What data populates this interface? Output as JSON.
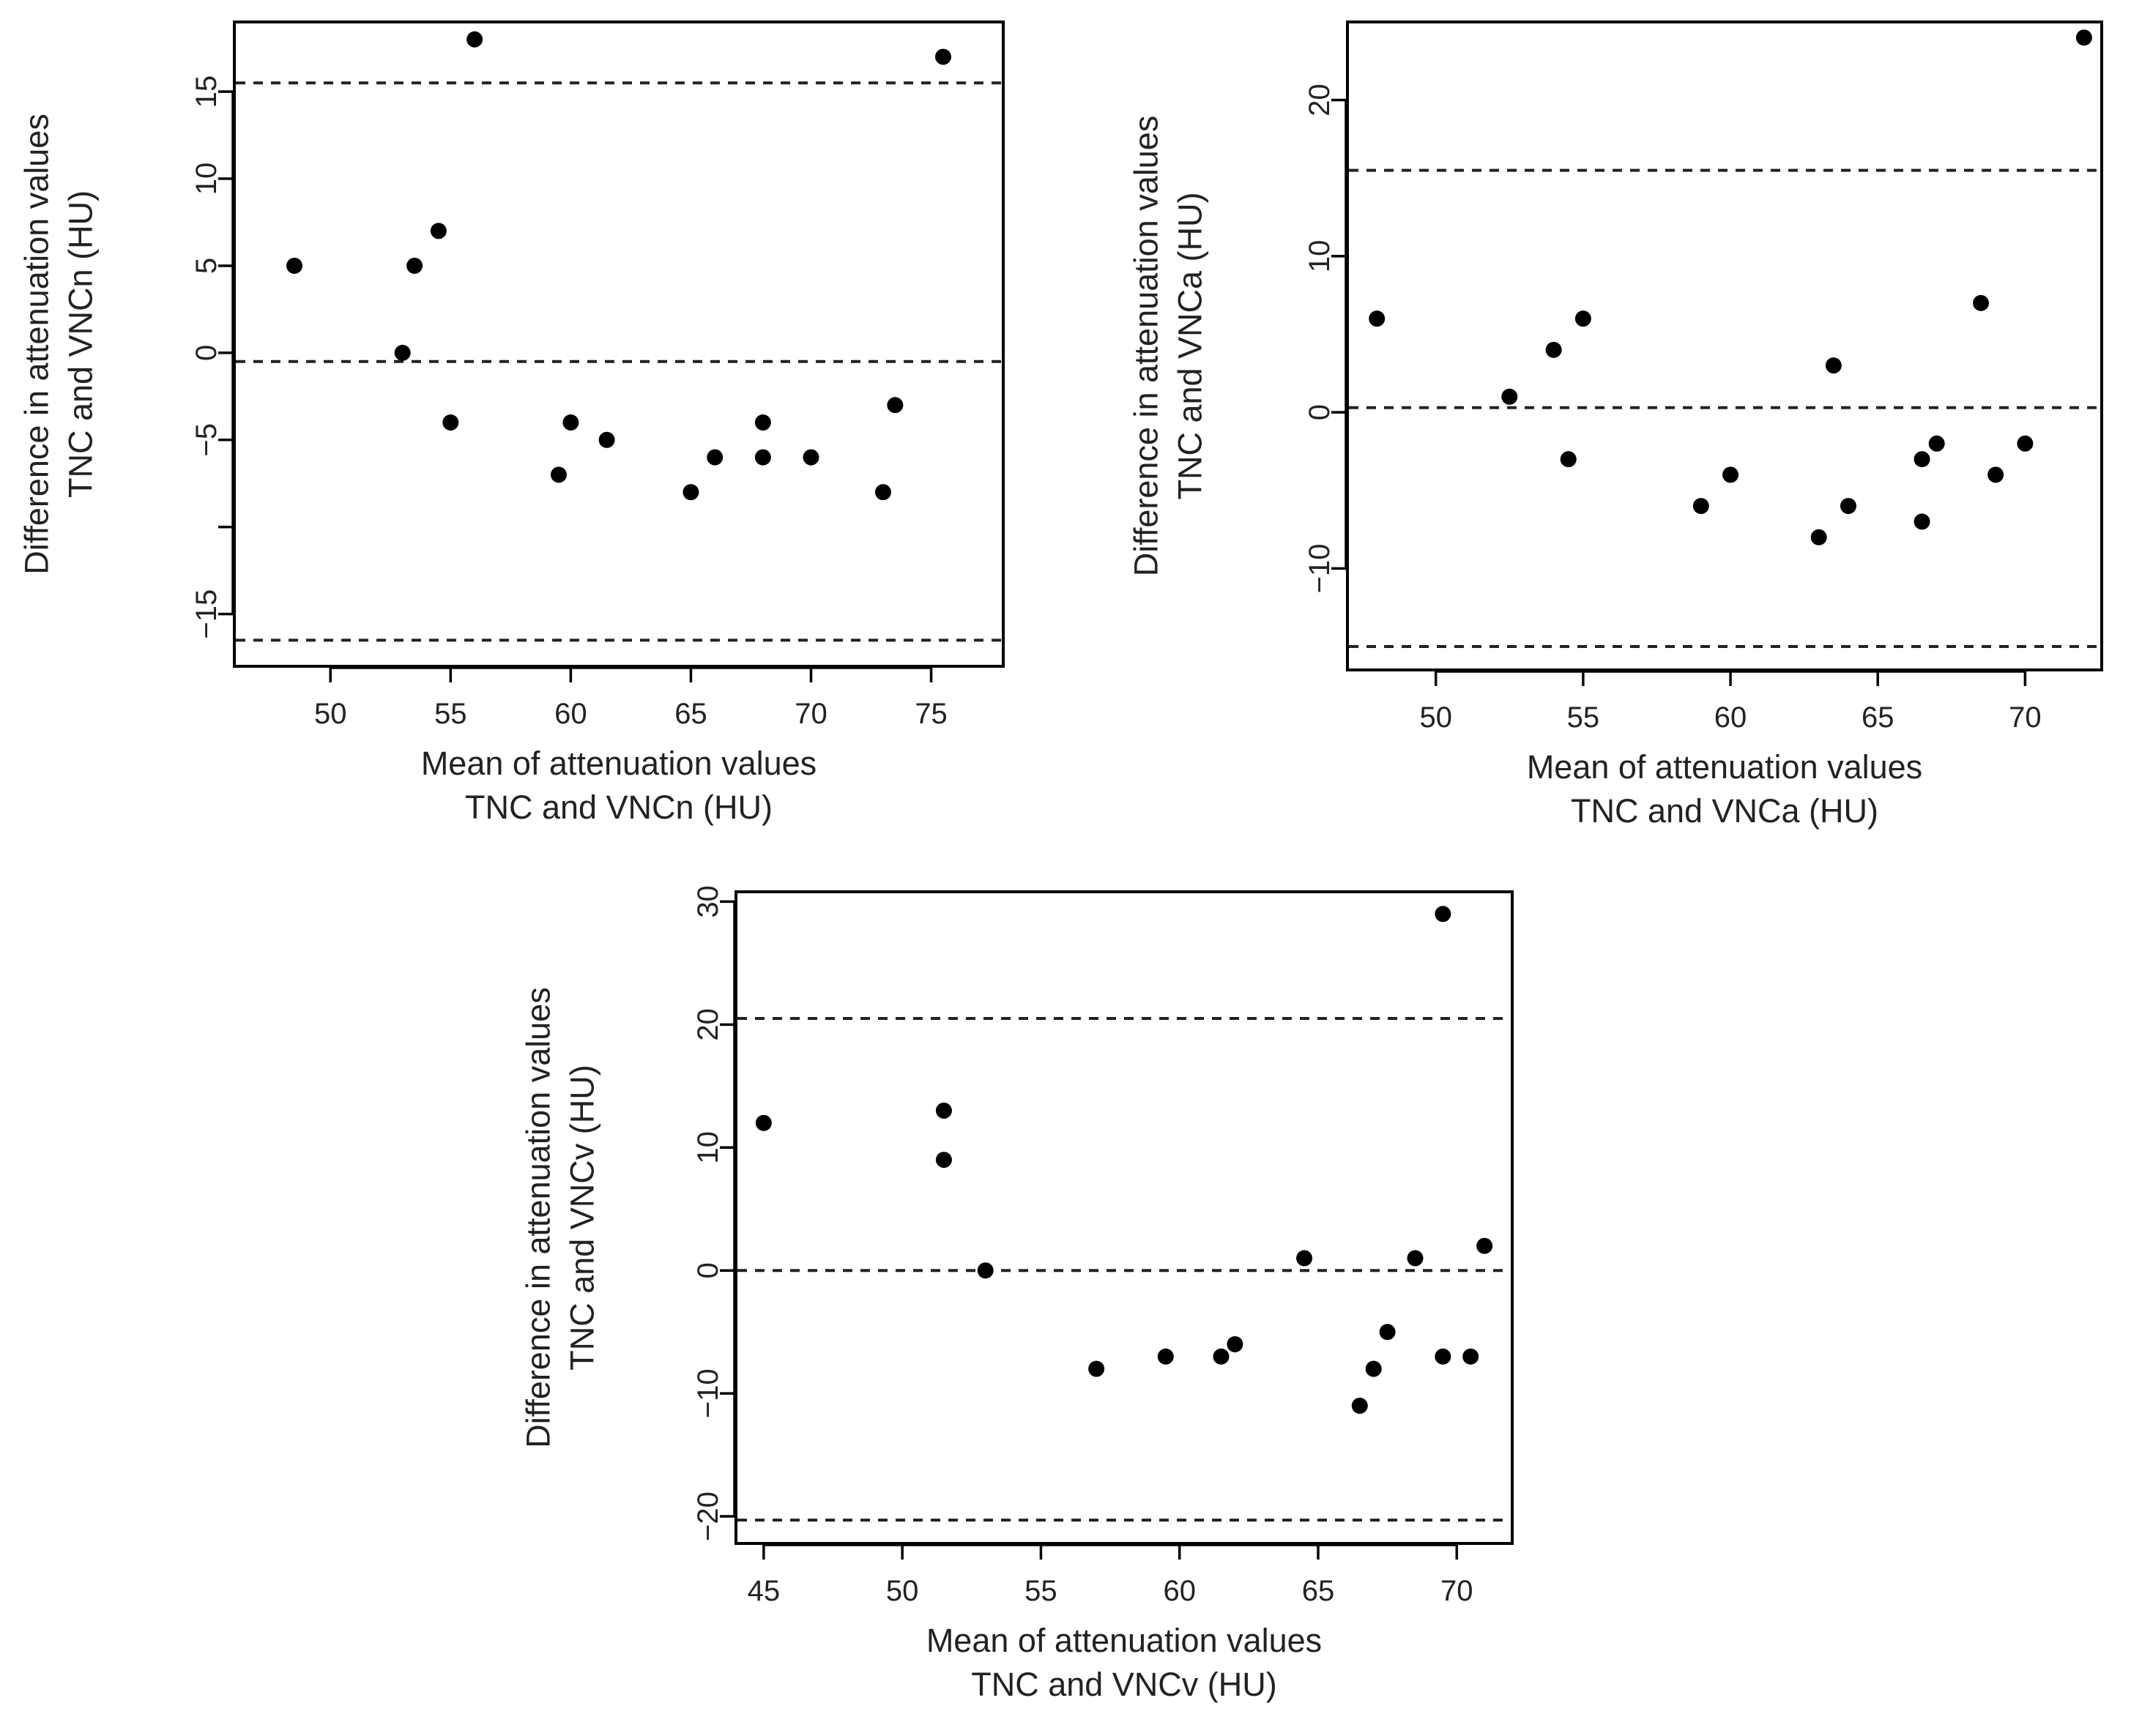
{
  "chart_data": [
    {
      "type": "scatter",
      "plot_kind": "bland-altman",
      "xlabel": [
        "Mean of attenuation values",
        "TNC and VNCn (HU)"
      ],
      "ylabel": [
        "Difference in attenuation values",
        "TNC and VNCn (HU)"
      ],
      "xlim": [
        46,
        78
      ],
      "ylim": [
        -18,
        19
      ],
      "xticks": [
        50,
        55,
        60,
        65,
        70,
        75
      ],
      "yticks": [
        -15,
        -10,
        -5,
        0,
        5,
        10,
        15
      ],
      "ytick_labels": [
        "−15",
        "",
        "−5",
        "0",
        "5",
        "10",
        "15"
      ],
      "hlines": [
        15.5,
        -0.5,
        -16.5
      ],
      "points": [
        {
          "x": 48.5,
          "y": 5
        },
        {
          "x": 53,
          "y": 0
        },
        {
          "x": 53.5,
          "y": 5
        },
        {
          "x": 54.5,
          "y": 7
        },
        {
          "x": 55,
          "y": -4
        },
        {
          "x": 56,
          "y": 18
        },
        {
          "x": 59.5,
          "y": -7
        },
        {
          "x": 60,
          "y": -4
        },
        {
          "x": 61.5,
          "y": -5
        },
        {
          "x": 65,
          "y": -8
        },
        {
          "x": 66,
          "y": -6
        },
        {
          "x": 68,
          "y": -4
        },
        {
          "x": 68,
          "y": -6
        },
        {
          "x": 70,
          "y": -6
        },
        {
          "x": 73,
          "y": -8
        },
        {
          "x": 73.5,
          "y": -3
        },
        {
          "x": 75.5,
          "y": 17
        }
      ]
    },
    {
      "type": "scatter",
      "plot_kind": "bland-altman",
      "xlabel": [
        "Mean of attenuation values",
        "TNC and VNCa (HU)"
      ],
      "ylabel": [
        "Difference in attenuation values",
        "TNC and VNCa (HU)"
      ],
      "xlim": [
        47,
        72.6
      ],
      "ylim": [
        -16.5,
        25
      ],
      "xticks": [
        50,
        55,
        60,
        65,
        70
      ],
      "yticks": [
        -10,
        0,
        10,
        20
      ],
      "ytick_labels": [
        "−10",
        "0",
        "10",
        "20"
      ],
      "hlines": [
        15.5,
        0.3,
        -15
      ],
      "points": [
        {
          "x": 48,
          "y": 6
        },
        {
          "x": 52.5,
          "y": 1
        },
        {
          "x": 54,
          "y": 4
        },
        {
          "x": 54.5,
          "y": -3
        },
        {
          "x": 55,
          "y": 6
        },
        {
          "x": 59,
          "y": -6
        },
        {
          "x": 60,
          "y": -4
        },
        {
          "x": 63,
          "y": -8
        },
        {
          "x": 63.5,
          "y": 3
        },
        {
          "x": 64,
          "y": -6
        },
        {
          "x": 66.5,
          "y": -3
        },
        {
          "x": 66.5,
          "y": -7
        },
        {
          "x": 67,
          "y": -2
        },
        {
          "x": 68.5,
          "y": 7
        },
        {
          "x": 69,
          "y": -4
        },
        {
          "x": 70,
          "y": -2
        },
        {
          "x": 72,
          "y": 24
        }
      ]
    },
    {
      "type": "scatter",
      "plot_kind": "bland-altman",
      "xlabel": [
        "Mean of attenuation values",
        "TNC and VNCv (HU)"
      ],
      "ylabel": [
        "Difference in attenuation values",
        "TNC and VNCv (HU)"
      ],
      "xlim": [
        44,
        72
      ],
      "ylim": [
        -22.2,
        30.8
      ],
      "xticks": [
        45,
        50,
        55,
        60,
        65,
        70
      ],
      "yticks": [
        -20,
        -10,
        0,
        10,
        20,
        30
      ],
      "ytick_labels": [
        "−20",
        "−10",
        "0",
        "10",
        "20",
        "30"
      ],
      "hlines": [
        20.5,
        0,
        -20.3
      ],
      "points": [
        {
          "x": 45,
          "y": 12
        },
        {
          "x": 51.5,
          "y": 13
        },
        {
          "x": 51.5,
          "y": 9
        },
        {
          "x": 53,
          "y": 0
        },
        {
          "x": 57,
          "y": -8
        },
        {
          "x": 59.5,
          "y": -7
        },
        {
          "x": 61.5,
          "y": -7
        },
        {
          "x": 62,
          "y": -6
        },
        {
          "x": 64.5,
          "y": 1
        },
        {
          "x": 66.5,
          "y": -11
        },
        {
          "x": 67,
          "y": -8
        },
        {
          "x": 67.5,
          "y": -5
        },
        {
          "x": 68.5,
          "y": 1
        },
        {
          "x": 69.5,
          "y": -7
        },
        {
          "x": 69.5,
          "y": 29
        },
        {
          "x": 70.5,
          "y": -7
        },
        {
          "x": 71,
          "y": 2
        }
      ]
    }
  ]
}
